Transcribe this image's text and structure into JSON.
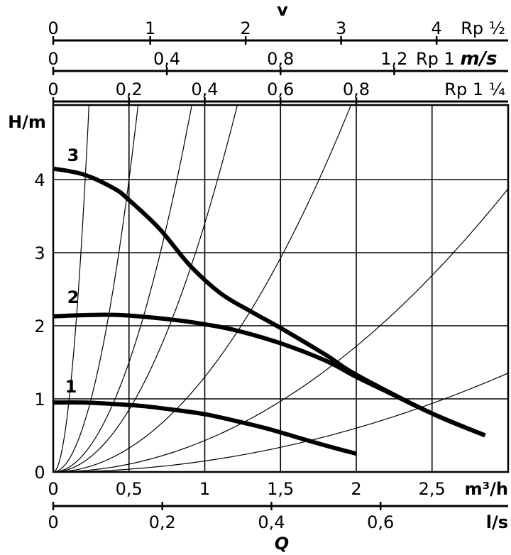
{
  "chart_data": {
    "type": "line",
    "xlabel": "Q",
    "ylabel": "H/m",
    "x_unit_primary": "m³/h",
    "x_unit_secondary": "l/s",
    "xlim": [
      0,
      3
    ],
    "ylim": [
      0,
      5
    ],
    "x_ticks": [
      0,
      0.5,
      1,
      1.5,
      2,
      2.5
    ],
    "x_tick_labels": [
      "0",
      "0,5",
      "1",
      "1,5",
      "2",
      "2,5"
    ],
    "y_ticks": [
      0,
      1,
      2,
      3,
      4
    ],
    "y_tick_labels": [
      "0",
      "1",
      "2",
      "3",
      "4"
    ],
    "ls_ticks": [
      0,
      0.2,
      0.4,
      0.6
    ],
    "ls_tick_labels": [
      "0",
      "0,2",
      "0,4",
      "0,6"
    ],
    "grid": true,
    "velocity_title": "v",
    "velocity_unit": "m/s",
    "velocity_scales": [
      {
        "name": "Rp ½",
        "ticks": [
          0,
          1,
          2,
          3,
          4
        ],
        "tick_labels": [
          "0",
          "1",
          "2",
          "3",
          "4"
        ],
        "ticks_q": [
          0,
          0.64,
          1.27,
          1.9,
          2.53
        ]
      },
      {
        "name": "Rp 1",
        "ticks": [
          0,
          0.4,
          0.8,
          1.2
        ],
        "tick_labels": [
          "0",
          "0,4",
          "0,8",
          "1,2"
        ],
        "ticks_q": [
          0,
          0.75,
          1.5,
          2.25
        ]
      },
      {
        "name": "Rp 1 ¼",
        "ticks": [
          0,
          0.2,
          0.4,
          0.6,
          0.8
        ],
        "tick_labels": [
          "0",
          "0,2",
          "0,4",
          "0,6",
          "0,8"
        ],
        "ticks_q": [
          0,
          0.5,
          1.0,
          1.5,
          2.0
        ]
      }
    ],
    "series": [
      {
        "name": "1",
        "x": [
          0,
          0.2,
          0.4,
          0.6,
          0.8,
          1.0,
          1.2,
          1.4,
          1.6,
          1.8,
          2.0
        ],
        "y": [
          0.95,
          0.95,
          0.93,
          0.9,
          0.85,
          0.79,
          0.7,
          0.6,
          0.48,
          0.36,
          0.25
        ]
      },
      {
        "name": "2",
        "x": [
          0,
          0.3,
          0.5,
          0.8,
          1.0,
          1.2,
          1.5,
          1.8,
          2.0,
          2.2,
          2.5,
          2.85
        ],
        "y": [
          2.13,
          2.15,
          2.14,
          2.08,
          2.02,
          1.94,
          1.76,
          1.52,
          1.3,
          1.1,
          0.8,
          0.5
        ]
      },
      {
        "name": "3",
        "x": [
          0,
          0.2,
          0.4,
          0.5,
          0.7,
          0.9,
          1.1,
          1.3,
          1.5,
          1.8,
          2.0,
          2.5,
          2.85
        ],
        "y": [
          4.15,
          4.07,
          3.88,
          3.72,
          3.33,
          2.83,
          2.45,
          2.2,
          1.97,
          1.6,
          1.33,
          0.8,
          0.5
        ]
      }
    ],
    "system_curve_coefficients": [
      90,
      16,
      6,
      3.4,
      1.3,
      0.43,
      0.15
    ]
  }
}
